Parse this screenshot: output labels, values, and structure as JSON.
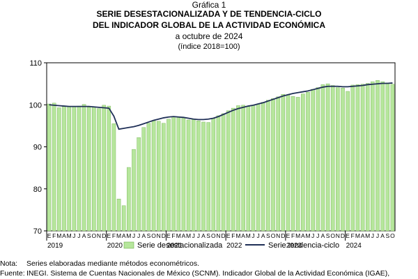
{
  "figure_label": "Gráfica 1",
  "title_line1": "SERIE DESESTACIONALIZADA Y DE TENDENCIA-CICLO",
  "title_line2": "DEL INDICADOR GLOBAL DE LA ACTIVIDAD ECONÓMICA",
  "period": "a octubre de 2024",
  "unit_note": "(índice 2018=100)",
  "footer": {
    "note_label": "Nota:",
    "note_text": "Series elaboradas mediante métodos econométricos.",
    "source_label": "Fuente:",
    "source_text": "INEGI. Sistema de Cuentas Nacionales de México (SCNM). Indicador Global de la Actividad Económica (IGAE),"
  },
  "colors": {
    "bar_fill": "#b6e69c",
    "bar_stroke": "#6fae4e",
    "line": "#1f2f57",
    "axis": "#000000",
    "grid": "#d0d0d0"
  },
  "chart_data": {
    "type": "bar",
    "ylim": [
      70,
      110
    ],
    "yticks": [
      70,
      80,
      90,
      100,
      110
    ],
    "grid": false,
    "legend_position": "bottom",
    "month_letters": [
      "E",
      "F",
      "M",
      "A",
      "M",
      "J",
      "J",
      "A",
      "S",
      "O",
      "N",
      "D"
    ],
    "x_year_labels": [
      "2019",
      "2020",
      "2021",
      "2022",
      "2023",
      "2024"
    ],
    "x_start": "2019-01",
    "x_end": "2024-10",
    "legend": [
      "Serie desestacionalizada",
      "Serie tendencia-ciclo"
    ],
    "series": [
      {
        "name": "Serie desestacionalizada",
        "type": "bar",
        "values": [
          100.2,
          100.4,
          99.3,
          99.6,
          99.6,
          99.6,
          99.7,
          100.1,
          99.4,
          99.4,
          99.1,
          99.9,
          99.7,
          95.5,
          77.6,
          76.0,
          85.1,
          89.4,
          92.2,
          94.6,
          95.6,
          96.2,
          96.1,
          95.6,
          96.6,
          97.2,
          97.0,
          96.9,
          96.4,
          96.5,
          96.2,
          95.9,
          95.8,
          96.8,
          97.4,
          97.9,
          98.6,
          99.2,
          99.8,
          99.9,
          99.7,
          99.9,
          100.2,
          100.6,
          101.1,
          101.5,
          101.9,
          102.5,
          102.3,
          102.0,
          101.8,
          102.6,
          103.0,
          103.7,
          104.1,
          104.8,
          105.0,
          104.6,
          104.1,
          104.0,
          103.2,
          104.7,
          104.8,
          104.9,
          105.1,
          105.5,
          105.8,
          105.5,
          105.2,
          104.9
        ]
      },
      {
        "name": "Serie tendencia-ciclo",
        "type": "line",
        "values": [
          100.0,
          99.9,
          99.8,
          99.7,
          99.6,
          99.6,
          99.6,
          99.6,
          99.6,
          99.5,
          99.4,
          99.3,
          99.2,
          97.3,
          94.2,
          94.4,
          94.6,
          94.8,
          95.1,
          95.5,
          95.9,
          96.3,
          96.6,
          96.9,
          97.1,
          97.2,
          97.1,
          97.0,
          96.8,
          96.6,
          96.5,
          96.5,
          96.6,
          96.8,
          97.2,
          97.7,
          98.2,
          98.7,
          99.1,
          99.4,
          99.7,
          99.9,
          100.2,
          100.5,
          100.9,
          101.3,
          101.7,
          102.1,
          102.4,
          102.7,
          102.9,
          103.1,
          103.3,
          103.6,
          103.9,
          104.2,
          104.4,
          104.4,
          104.4,
          104.3,
          104.3,
          104.4,
          104.5,
          104.6,
          104.8,
          104.9,
          105.0,
          105.1,
          105.1,
          105.2
        ]
      }
    ]
  }
}
